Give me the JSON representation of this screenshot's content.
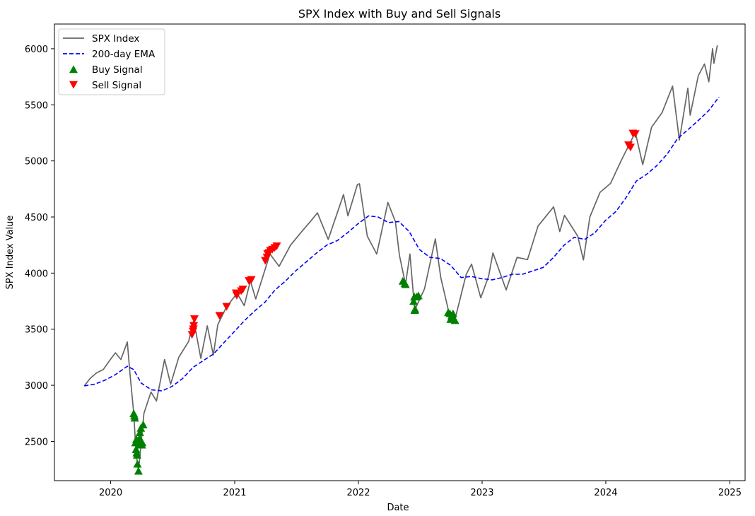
{
  "chart_data": {
    "type": "line",
    "title": "SPX Index with Buy and Sell Signals",
    "xlabel": "Date",
    "ylabel": "SPX Index Value",
    "x_ticks": [
      "2020",
      "2021",
      "2022",
      "2023",
      "2024",
      "2025"
    ],
    "y_ticks": [
      2500,
      3000,
      3500,
      4000,
      4500,
      5000,
      5500,
      6000
    ],
    "xlim": [
      "2019-07-19",
      "2025-02-15"
    ],
    "ylim": [
      2150,
      6220
    ],
    "grid": false,
    "legend_position": "upper-left",
    "series": [
      {
        "name": "SPX Index",
        "style": "solid",
        "color": "#666666",
        "points": [
          [
            "2019-10-15",
            2995
          ],
          [
            "2019-11-01",
            3060
          ],
          [
            "2019-11-20",
            3110
          ],
          [
            "2019-12-10",
            3140
          ],
          [
            "2019-12-31",
            3230
          ],
          [
            "2020-01-15",
            3290
          ],
          [
            "2020-01-31",
            3230
          ],
          [
            "2020-02-19",
            3386
          ],
          [
            "2020-02-27",
            3100
          ],
          [
            "2020-03-09",
            2750
          ],
          [
            "2020-03-16",
            2390
          ],
          [
            "2020-03-23",
            2237
          ],
          [
            "2020-04-08",
            2750
          ],
          [
            "2020-04-29",
            2940
          ],
          [
            "2020-05-15",
            2860
          ],
          [
            "2020-06-08",
            3230
          ],
          [
            "2020-06-26",
            3010
          ],
          [
            "2020-07-20",
            3250
          ],
          [
            "2020-08-18",
            3390
          ],
          [
            "2020-09-02",
            3580
          ],
          [
            "2020-09-23",
            3240
          ],
          [
            "2020-10-12",
            3530
          ],
          [
            "2020-10-30",
            3270
          ],
          [
            "2020-11-12",
            3540
          ],
          [
            "2020-12-08",
            3700
          ],
          [
            "2021-01-08",
            3820
          ],
          [
            "2021-01-29",
            3710
          ],
          [
            "2021-02-16",
            3930
          ],
          [
            "2021-03-04",
            3770
          ],
          [
            "2021-04-15",
            4170
          ],
          [
            "2021-05-12",
            4060
          ],
          [
            "2021-06-15",
            4250
          ],
          [
            "2021-07-15",
            4360
          ],
          [
            "2021-08-15",
            4470
          ],
          [
            "2021-09-02",
            4537
          ],
          [
            "2021-10-04",
            4300
          ],
          [
            "2021-11-18",
            4700
          ],
          [
            "2021-12-01",
            4510
          ],
          [
            "2021-12-29",
            4790
          ],
          [
            "2022-01-04",
            4796
          ],
          [
            "2022-01-27",
            4330
          ],
          [
            "2022-02-24",
            4170
          ],
          [
            "2022-03-29",
            4630
          ],
          [
            "2022-04-20",
            4460
          ],
          [
            "2022-05-02",
            4160
          ],
          [
            "2022-05-20",
            3900
          ],
          [
            "2022-06-02",
            4170
          ],
          [
            "2022-06-16",
            3670
          ],
          [
            "2022-07-15",
            3860
          ],
          [
            "2022-08-16",
            4305
          ],
          [
            "2022-09-01",
            3960
          ],
          [
            "2022-09-30",
            3585
          ],
          [
            "2022-10-12",
            3577
          ],
          [
            "2022-11-15",
            3990
          ],
          [
            "2022-12-01",
            4080
          ],
          [
            "2022-12-28",
            3780
          ],
          [
            "2023-01-20",
            3970
          ],
          [
            "2023-02-02",
            4180
          ],
          [
            "2023-03-13",
            3850
          ],
          [
            "2023-04-14",
            4140
          ],
          [
            "2023-05-15",
            4120
          ],
          [
            "2023-06-15",
            4420
          ],
          [
            "2023-07-31",
            4590
          ],
          [
            "2023-08-18",
            4370
          ],
          [
            "2023-09-01",
            4515
          ],
          [
            "2023-10-10",
            4330
          ],
          [
            "2023-10-27",
            4117
          ],
          [
            "2023-11-15",
            4500
          ],
          [
            "2023-12-15",
            4720
          ],
          [
            "2024-01-15",
            4800
          ],
          [
            "2024-02-15",
            5000
          ],
          [
            "2024-03-28",
            5254
          ],
          [
            "2024-04-19",
            4967
          ],
          [
            "2024-05-15",
            5300
          ],
          [
            "2024-06-15",
            5430
          ],
          [
            "2024-07-16",
            5667
          ],
          [
            "2024-08-05",
            5186
          ],
          [
            "2024-08-30",
            5648
          ],
          [
            "2024-09-06",
            5408
          ],
          [
            "2024-09-30",
            5760
          ],
          [
            "2024-10-18",
            5864
          ],
          [
            "2024-10-31",
            5705
          ],
          [
            "2024-11-11",
            6001
          ],
          [
            "2024-11-15",
            5870
          ],
          [
            "2024-11-25",
            6030
          ]
        ]
      },
      {
        "name": "200-day EMA",
        "style": "dashed",
        "color": "#0000ff",
        "points": [
          [
            "2019-10-15",
            2995
          ],
          [
            "2019-11-15",
            3010
          ],
          [
            "2019-12-15",
            3045
          ],
          [
            "2020-01-15",
            3095
          ],
          [
            "2020-02-19",
            3170
          ],
          [
            "2020-03-09",
            3140
          ],
          [
            "2020-03-31",
            3020
          ],
          [
            "2020-04-30",
            2960
          ],
          [
            "2020-05-31",
            2950
          ],
          [
            "2020-06-30",
            2990
          ],
          [
            "2020-07-31",
            3060
          ],
          [
            "2020-08-31",
            3160
          ],
          [
            "2020-09-30",
            3220
          ],
          [
            "2020-10-31",
            3280
          ],
          [
            "2020-11-30",
            3380
          ],
          [
            "2020-12-31",
            3480
          ],
          [
            "2021-01-31",
            3580
          ],
          [
            "2021-02-28",
            3660
          ],
          [
            "2021-03-31",
            3740
          ],
          [
            "2021-04-30",
            3850
          ],
          [
            "2021-05-31",
            3930
          ],
          [
            "2021-06-30",
            4020
          ],
          [
            "2021-07-31",
            4100
          ],
          [
            "2021-08-31",
            4180
          ],
          [
            "2021-09-30",
            4250
          ],
          [
            "2021-10-31",
            4290
          ],
          [
            "2021-11-30",
            4360
          ],
          [
            "2021-12-31",
            4440
          ],
          [
            "2022-01-31",
            4510
          ],
          [
            "2022-02-28",
            4500
          ],
          [
            "2022-03-31",
            4450
          ],
          [
            "2022-04-30",
            4460
          ],
          [
            "2022-05-31",
            4370
          ],
          [
            "2022-06-30",
            4210
          ],
          [
            "2022-07-31",
            4140
          ],
          [
            "2022-08-31",
            4130
          ],
          [
            "2022-09-30",
            4070
          ],
          [
            "2022-10-31",
            3960
          ],
          [
            "2022-11-30",
            3970
          ],
          [
            "2022-12-31",
            3950
          ],
          [
            "2023-01-31",
            3940
          ],
          [
            "2023-02-28",
            3960
          ],
          [
            "2023-03-31",
            3990
          ],
          [
            "2023-04-30",
            3990
          ],
          [
            "2023-05-31",
            4020
          ],
          [
            "2023-06-30",
            4050
          ],
          [
            "2023-07-31",
            4140
          ],
          [
            "2023-08-31",
            4250
          ],
          [
            "2023-09-30",
            4320
          ],
          [
            "2023-10-31",
            4300
          ],
          [
            "2023-11-30",
            4360
          ],
          [
            "2023-12-31",
            4470
          ],
          [
            "2024-01-31",
            4550
          ],
          [
            "2024-02-29",
            4670
          ],
          [
            "2024-03-31",
            4820
          ],
          [
            "2024-04-30",
            4880
          ],
          [
            "2024-05-31",
            4960
          ],
          [
            "2024-06-30",
            5060
          ],
          [
            "2024-07-31",
            5200
          ],
          [
            "2024-08-31",
            5280
          ],
          [
            "2024-09-30",
            5360
          ],
          [
            "2024-10-31",
            5450
          ],
          [
            "2024-11-30",
            5570
          ]
        ]
      }
    ],
    "markers": [
      {
        "name": "Buy Signal",
        "marker": "triangle-up",
        "color": "#008000",
        "points": [
          [
            "2020-03-09",
            2750
          ],
          [
            "2020-03-11",
            2730
          ],
          [
            "2020-03-12",
            2710
          ],
          [
            "2020-03-14",
            2490
          ],
          [
            "2020-03-16",
            2430
          ],
          [
            "2020-03-17",
            2520
          ],
          [
            "2020-03-18",
            2400
          ],
          [
            "2020-03-19",
            2380
          ],
          [
            "2020-03-20",
            2300
          ],
          [
            "2020-03-23",
            2237
          ],
          [
            "2020-03-25",
            2470
          ],
          [
            "2020-03-26",
            2530
          ],
          [
            "2020-03-27",
            2580
          ],
          [
            "2020-03-30",
            2620
          ],
          [
            "2020-04-01",
            2500
          ],
          [
            "2020-04-02",
            2470
          ],
          [
            "2020-04-03",
            2490
          ],
          [
            "2020-04-06",
            2650
          ],
          [
            "2022-05-12",
            3930
          ],
          [
            "2022-05-18",
            3910
          ],
          [
            "2022-05-20",
            3900
          ],
          [
            "2022-06-13",
            3750
          ],
          [
            "2022-06-15",
            3790
          ],
          [
            "2022-06-16",
            3670
          ],
          [
            "2022-06-17",
            3680
          ],
          [
            "2022-06-22",
            3790
          ],
          [
            "2022-06-27",
            3800
          ],
          [
            "2022-09-23",
            3650
          ],
          [
            "2022-09-28",
            3640
          ],
          [
            "2022-09-30",
            3590
          ],
          [
            "2022-10-03",
            3620
          ],
          [
            "2022-10-07",
            3640
          ],
          [
            "2022-10-11",
            3590
          ],
          [
            "2022-10-13",
            3580
          ]
        ]
      },
      {
        "name": "Sell Signal",
        "marker": "triangle-down",
        "color": "#ff0000",
        "points": [
          [
            "2020-08-28",
            3450
          ],
          [
            "2020-08-31",
            3480
          ],
          [
            "2020-09-01",
            3500
          ],
          [
            "2020-09-02",
            3530
          ],
          [
            "2020-09-04",
            3590
          ],
          [
            "2020-11-17",
            3620
          ],
          [
            "2020-12-08",
            3700
          ],
          [
            "2021-01-05",
            3820
          ],
          [
            "2021-01-07",
            3800
          ],
          [
            "2021-01-20",
            3840
          ],
          [
            "2021-01-25",
            3855
          ],
          [
            "2021-02-12",
            3930
          ],
          [
            "2021-02-19",
            3940
          ],
          [
            "2021-04-01",
            4110
          ],
          [
            "2021-04-06",
            4140
          ],
          [
            "2021-04-08",
            4170
          ],
          [
            "2021-04-12",
            4180
          ],
          [
            "2021-04-16",
            4200
          ],
          [
            "2021-04-22",
            4210
          ],
          [
            "2021-04-29",
            4225
          ],
          [
            "2021-05-05",
            4240
          ],
          [
            "2024-03-08",
            5140
          ],
          [
            "2024-03-14",
            5120
          ],
          [
            "2024-03-21",
            5245
          ],
          [
            "2024-03-28",
            5240
          ]
        ]
      }
    ]
  }
}
